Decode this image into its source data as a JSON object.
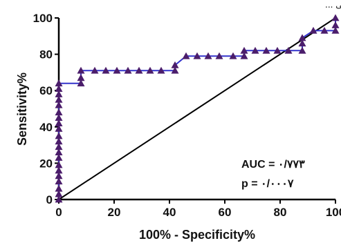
{
  "header_strip": "روی این بین ای و بیمارستان و ... در ارزیابی ...",
  "chart_data": {
    "type": "line",
    "title": "",
    "xlabel": "100% - Specificity%",
    "ylabel": "Sensitivity%",
    "xlim": [
      0,
      100
    ],
    "ylim": [
      0,
      100
    ],
    "x_ticks": [
      "0",
      "20",
      "40",
      "60",
      "80",
      "100"
    ],
    "y_ticks": [
      "0",
      "20",
      "40",
      "60",
      "80",
      "100"
    ],
    "grid": false,
    "series": [
      {
        "type": "roc-curve",
        "color": "#3333cc",
        "marker": "triangle",
        "marker_color": "#4b1d6b",
        "points": [
          [
            0,
            0
          ],
          [
            0,
            3
          ],
          [
            0,
            6
          ],
          [
            0,
            10
          ],
          [
            0,
            13
          ],
          [
            0,
            16
          ],
          [
            0,
            19
          ],
          [
            0,
            23
          ],
          [
            0,
            26
          ],
          [
            0,
            29
          ],
          [
            0,
            32
          ],
          [
            0,
            35
          ],
          [
            0,
            39
          ],
          [
            0,
            42
          ],
          [
            0,
            45
          ],
          [
            0,
            48
          ],
          [
            0,
            52
          ],
          [
            0,
            55
          ],
          [
            0,
            58
          ],
          [
            0,
            61
          ],
          [
            0,
            64
          ],
          [
            8,
            64
          ],
          [
            8,
            67
          ],
          [
            8,
            71
          ],
          [
            13,
            71
          ],
          [
            17,
            71
          ],
          [
            21,
            71
          ],
          [
            25,
            71
          ],
          [
            29,
            71
          ],
          [
            33,
            71
          ],
          [
            37,
            71
          ],
          [
            42,
            71
          ],
          [
            42,
            74
          ],
          [
            46,
            79
          ],
          [
            50,
            79
          ],
          [
            54,
            79
          ],
          [
            58,
            79
          ],
          [
            63,
            79
          ],
          [
            67,
            79
          ],
          [
            67,
            82
          ],
          [
            71,
            82
          ],
          [
            75,
            82
          ],
          [
            79,
            82
          ],
          [
            83,
            82
          ],
          [
            88,
            82
          ],
          [
            88,
            86
          ],
          [
            88,
            89
          ],
          [
            92,
            93
          ],
          [
            96,
            93
          ],
          [
            100,
            93
          ],
          [
            100,
            96
          ],
          [
            100,
            100
          ]
        ]
      },
      {
        "type": "reference-diagonal",
        "color": "#000000",
        "points": [
          [
            0,
            0
          ],
          [
            100,
            100
          ]
        ]
      }
    ],
    "annotations": {
      "auc": "AUC = ۰/۷۷۳",
      "p": "p = ۰/۰۰۰۷"
    }
  }
}
